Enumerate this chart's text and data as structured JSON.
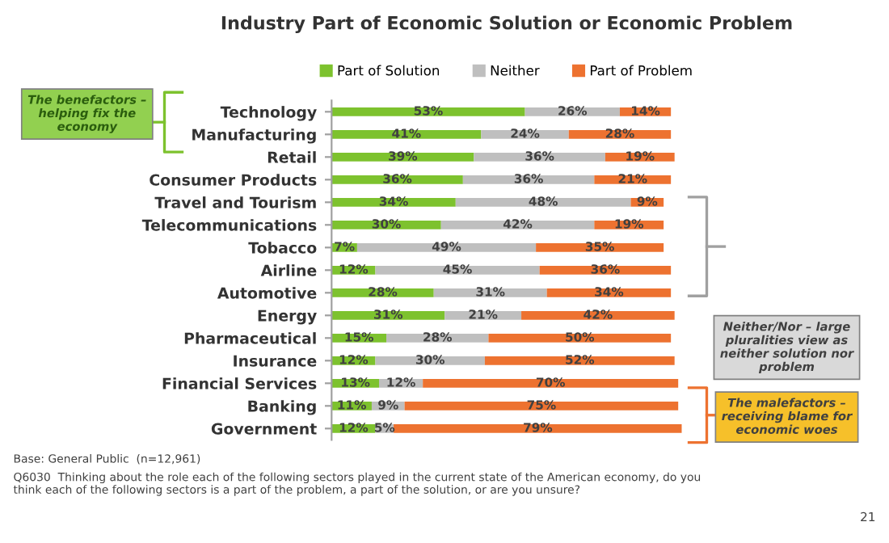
{
  "chart_data": {
    "type": "bar",
    "orientation": "horizontal",
    "stacked": true,
    "title": "Industry Part of Economic Solution or Economic Problem",
    "categories": [
      "Technology",
      "Manufacturing",
      "Retail",
      "Consumer Products",
      "Travel and Tourism",
      "Telecommunications",
      "Tobacco",
      "Airline",
      "Automotive",
      "Energy",
      "Pharmaceutical",
      "Insurance",
      "Financial Services",
      "Banking",
      "Government"
    ],
    "series": [
      {
        "name": "Part of Solution",
        "color": "#7dc22e",
        "values": [
          53,
          41,
          39,
          36,
          34,
          30,
          7,
          12,
          28,
          31,
          15,
          12,
          13,
          11,
          12
        ],
        "value_labels": [
          "53%",
          "41%",
          "39%",
          "36%",
          "34%",
          "30%",
          "7%",
          "12%",
          "28%",
          "31%",
          "15%",
          "12%",
          "13%",
          "11%",
          "12%"
        ]
      },
      {
        "name": "Neither",
        "color": "#bfbfbf",
        "values": [
          26,
          24,
          36,
          36,
          48,
          42,
          49,
          45,
          31,
          21,
          28,
          30,
          12,
          9,
          5
        ],
        "value_labels": [
          "26%",
          "24%",
          "36%",
          "36%",
          "48%",
          "42%",
          "49%",
          "45%",
          "31%",
          "21%",
          "28%",
          "30%",
          "12%",
          "9%",
          "5%"
        ]
      },
      {
        "name": "Part of Problem",
        "color": "#ed7230",
        "values": [
          14,
          28,
          19,
          21,
          9,
          19,
          35,
          36,
          34,
          42,
          50,
          52,
          70,
          75,
          79
        ],
        "value_labels": [
          "14%",
          "28%",
          "19%",
          "21%",
          "9%",
          "19%",
          "35%",
          "36%",
          "34%",
          "42%",
          "50%",
          "52%",
          "70%",
          "75%",
          "79%"
        ]
      }
    ],
    "legend": "top",
    "grid": false,
    "tick_labels": "y",
    "annotations": [
      "The benefactors – helping fix the economy",
      "Neither/Nor – large pluralities view as neither solution nor problem",
      "The malefactors – receiving blame for economic woes",
      "Base: General Public  (n=12,961)",
      "Q6030  Thinking about the role each of the following sectors played in the current state of the American economy, do you think each of the following sectors is a part of the problem, a part of the solution, or are you unsure?",
      "21"
    ]
  }
}
